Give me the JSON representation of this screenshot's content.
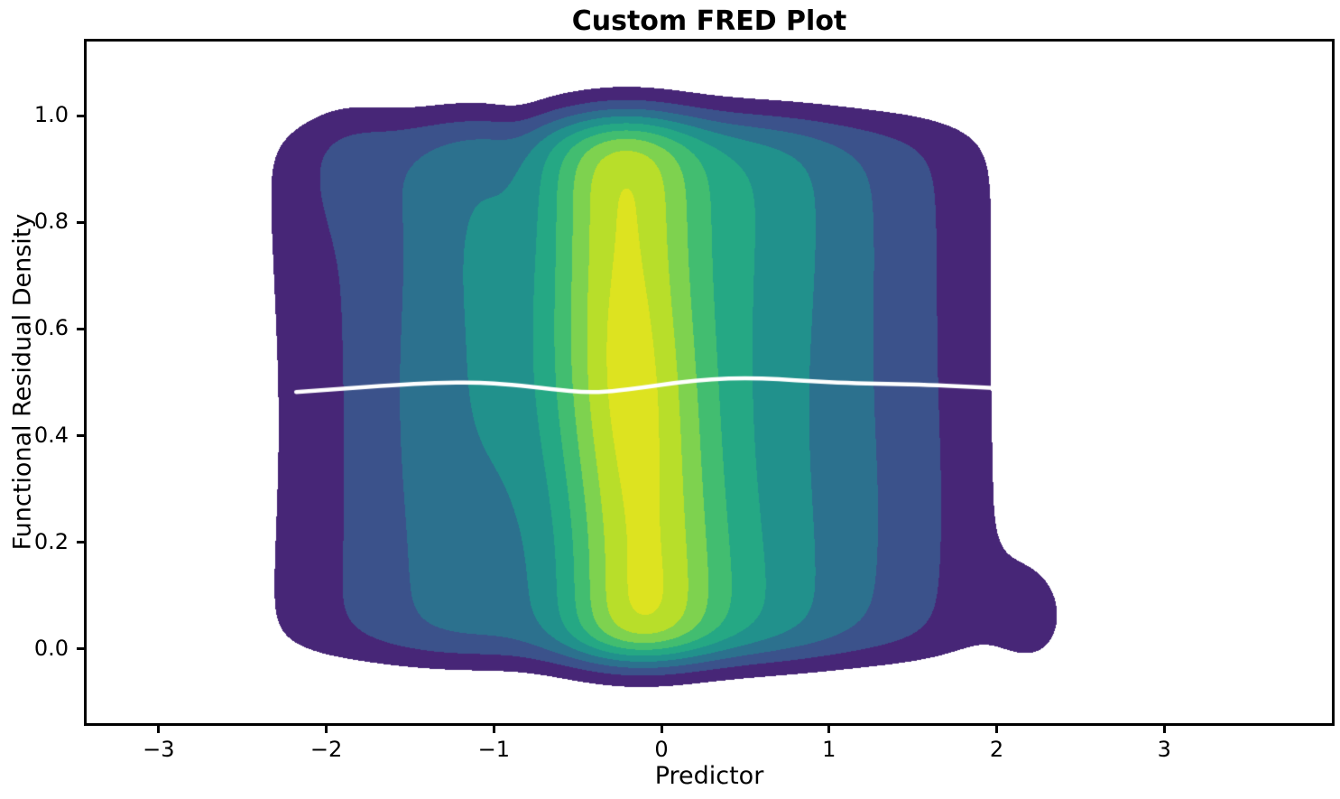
{
  "chart_data": {
    "type": "filled_contour",
    "title": "Custom FRED Plot",
    "xlabel": "Predictor",
    "ylabel": "Functional Residual Density",
    "xlim": [
      -3.43,
      4.0
    ],
    "ylim": [
      -0.139,
      1.139
    ],
    "xticks": {
      "values": [
        -3,
        -2,
        -1,
        0,
        1,
        2,
        3
      ],
      "labels": [
        "−3",
        "−2",
        "−1",
        "0",
        "1",
        "2",
        "3"
      ]
    },
    "yticks": {
      "values": [
        0.0,
        0.2,
        0.4,
        0.6,
        0.8,
        1.0
      ],
      "labels": [
        "0.0",
        "0.2",
        "0.4",
        "0.6",
        "0.8",
        "1.0"
      ]
    },
    "grid": false,
    "legend": null,
    "colormap": "viridis",
    "n_bands": 9,
    "band_colors": [
      "#472677",
      "#3b528b",
      "#2c718e",
      "#21918c",
      "#25a884",
      "#42bd70",
      "#7ed24f",
      "#b8de2a",
      "#dde320"
    ],
    "background_color": "#ffffff",
    "spine_color": "#000000",
    "visible_extent": {
      "x": [
        -2.3,
        2.37
      ],
      "y": [
        -0.075,
        1.06
      ]
    },
    "density_model": {
      "x_components": [
        {
          "mu": -0.2,
          "sigma": 0.34,
          "weight": 1.0,
          "sway_amp": -0.05,
          "sway_freq": 4.4,
          "sway_center": 0.52
        },
        {
          "mu": 0.55,
          "sigma": 0.5,
          "weight": 0.6
        },
        {
          "mu": -1.15,
          "sigma": 0.55,
          "weight": 0.5
        },
        {
          "mu": -2.1,
          "sigma": 0.35,
          "weight": 0.1
        },
        {
          "mu": 1.5,
          "sigma": 0.42,
          "weight": 0.24
        }
      ],
      "y_window": {
        "low": -0.015,
        "high": 0.99,
        "soft_low": 0.026,
        "soft_high": 0.03
      },
      "wiggle": [
        {
          "amp": 0.04,
          "xf": 2.3,
          "xp": 0.7,
          "yf": 6.8,
          "yp": 0.4
        },
        {
          "amp": 0.03,
          "xf": 1.1,
          "xp": 2.3,
          "yf": 9.5,
          "yp": 1.7
        }
      ],
      "bumps": [
        {
          "x": 2.22,
          "sx": 0.18,
          "y": 0.06,
          "sy": 0.08,
          "w": 0.15
        },
        {
          "x": -1.88,
          "sx": 0.2,
          "y": 0.93,
          "sy": 0.1,
          "w": 0.07
        },
        {
          "x": -1.15,
          "sx": 0.2,
          "y": 0.78,
          "sy": 0.14,
          "w": 0.06
        },
        {
          "x": -0.85,
          "sx": 0.12,
          "y": 0.95,
          "sy": 0.1,
          "w": -0.045
        }
      ],
      "level_divisor": 9.52
    },
    "mean_line": {
      "color": "#ffffff",
      "width": 4.5,
      "points": [
        [
          -2.18,
          0.482
        ],
        [
          -1.9,
          0.488
        ],
        [
          -1.6,
          0.495
        ],
        [
          -1.35,
          0.499
        ],
        [
          -1.1,
          0.5
        ],
        [
          -0.9,
          0.496
        ],
        [
          -0.65,
          0.487
        ],
        [
          -0.45,
          0.481
        ],
        [
          -0.3,
          0.483
        ],
        [
          -0.1,
          0.491
        ],
        [
          0.1,
          0.5
        ],
        [
          0.3,
          0.506
        ],
        [
          0.5,
          0.508
        ],
        [
          0.7,
          0.506
        ],
        [
          0.9,
          0.502
        ],
        [
          1.1,
          0.499
        ],
        [
          1.35,
          0.497
        ],
        [
          1.6,
          0.495
        ],
        [
          1.8,
          0.492
        ],
        [
          2.0,
          0.489
        ],
        [
          2.07,
          0.488
        ]
      ]
    }
  }
}
